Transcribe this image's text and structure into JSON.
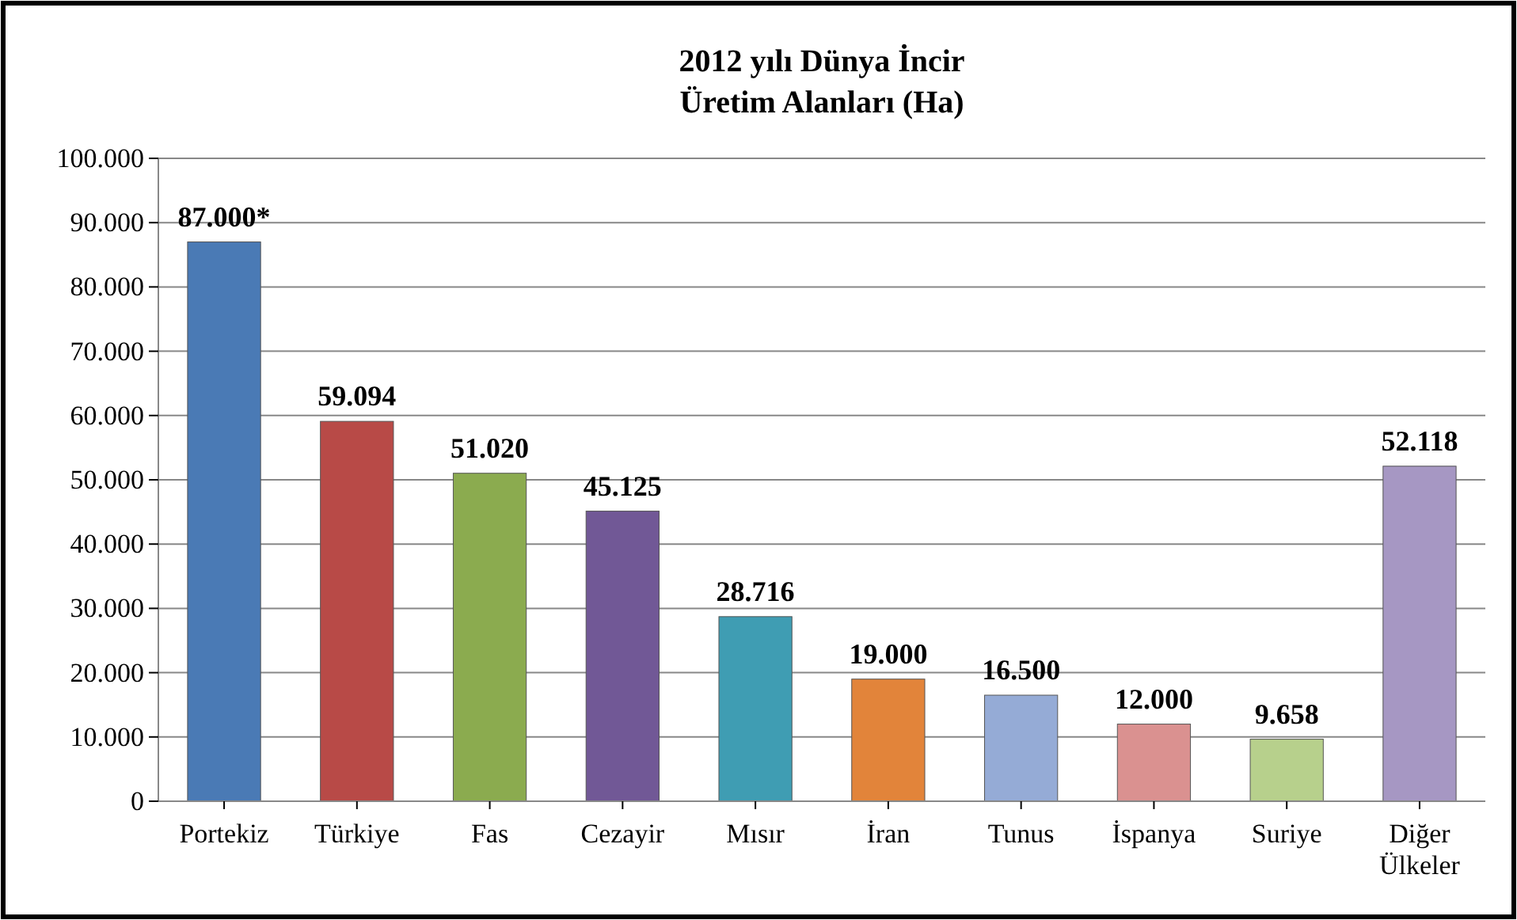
{
  "chart_data": {
    "type": "bar",
    "title": "2012 yılı Dünya İncir\nÜretim Alanları (Ha)",
    "categories": [
      "Portekiz",
      "Türkiye",
      "Fas",
      "Cezayir",
      "Mısır",
      "İran",
      "Tunus",
      "İspanya",
      "Suriye",
      "Diğer Ülkeler"
    ],
    "values": [
      87000,
      59094,
      51020,
      45125,
      28716,
      19000,
      16500,
      12000,
      9658,
      52118
    ],
    "value_labels": [
      "87.000*",
      "59.094",
      "51.020",
      "45.125",
      "28.716",
      "19.000",
      "16.500",
      "12.000",
      "9.658",
      "52.118"
    ],
    "colors": [
      "#4a7ab5",
      "#b84a47",
      "#8bab4f",
      "#715896",
      "#3f9db3",
      "#e2843a",
      "#95abd6",
      "#da9190",
      "#b7d08c",
      "#a697c3"
    ],
    "ylim": [
      0,
      100000
    ],
    "yticks": [
      0,
      {
        "value": 10000,
        "label": "10.000"
      },
      {
        "value": 20000,
        "label": "20.000"
      },
      {
        "value": 30000,
        "label": "30.000"
      },
      {
        "value": 40000,
        "label": "40.000"
      },
      {
        "value": 50000,
        "label": "50.000"
      },
      {
        "value": 60000,
        "label": "60.000"
      },
      {
        "value": 70000,
        "label": "70.000"
      },
      {
        "value": 80000,
        "label": "80.000"
      },
      {
        "value": 90000,
        "label": "90.000"
      },
      {
        "value": 100000,
        "label": "100.000"
      }
    ],
    "grid": "y"
  }
}
